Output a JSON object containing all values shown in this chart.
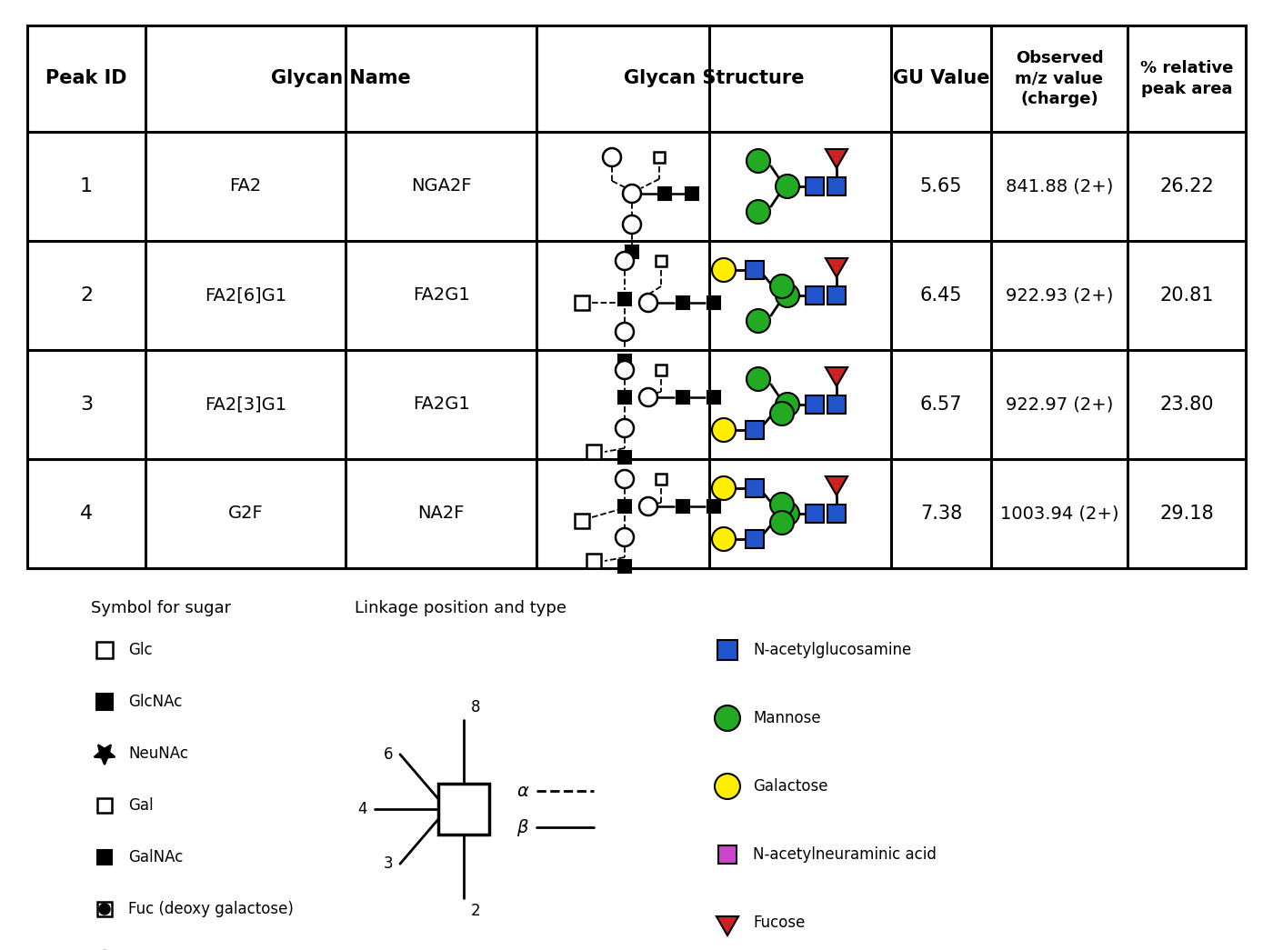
{
  "rows": [
    {
      "peak_id": "1",
      "name1": "FA2",
      "name2": "NGA2F",
      "gu": "5.65",
      "mz": "841.88 (2+)",
      "pct": "26.22"
    },
    {
      "peak_id": "2",
      "name1": "FA2[6]G1",
      "name2": "FA2G1",
      "gu": "6.45",
      "mz": "922.93 (2+)",
      "pct": "20.81"
    },
    {
      "peak_id": "3",
      "name1": "FA2[3]G1",
      "name2": "FA2G1",
      "gu": "6.57",
      "mz": "922.97 (2+)",
      "pct": "23.80"
    },
    {
      "peak_id": "4",
      "name1": "G2F",
      "name2": "NA2F",
      "gu": "7.38",
      "mz": "1003.94 (2+)",
      "pct": "29.18"
    }
  ],
  "colors": {
    "blue": "#2255cc",
    "green": "#22aa22",
    "yellow": "#ffee00",
    "red": "#cc2222",
    "magenta": "#cc44cc",
    "black": "#000000",
    "white": "#ffffff"
  }
}
